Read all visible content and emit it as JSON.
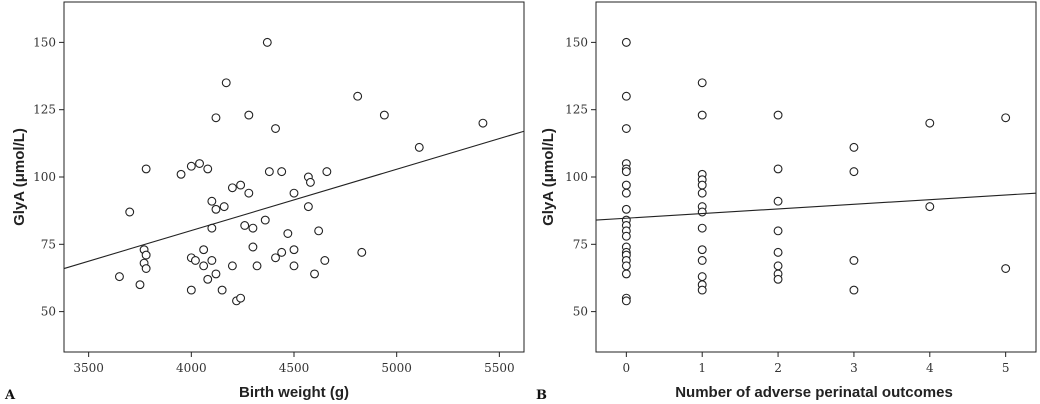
{
  "chart_data": [
    {
      "type": "scatter",
      "panel_label": "A",
      "xlabel": "Birth weight (g)",
      "ylabel": "GlyA  (μmol/L)",
      "xlim": [
        3380,
        5620
      ],
      "ylim": [
        35,
        165
      ],
      "xticks": [
        3500,
        4000,
        4500,
        5000,
        5500
      ],
      "yticks": [
        50,
        75,
        100,
        125,
        150
      ],
      "grid": false,
      "marker": "open-circle",
      "fit_line": {
        "x": [
          3380,
          5620
        ],
        "y": [
          66,
          117
        ]
      },
      "points": [
        {
          "x": 3650,
          "y": 63
        },
        {
          "x": 3700,
          "y": 87
        },
        {
          "x": 3750,
          "y": 60
        },
        {
          "x": 3770,
          "y": 73
        },
        {
          "x": 3780,
          "y": 71
        },
        {
          "x": 3770,
          "y": 68
        },
        {
          "x": 3780,
          "y": 66
        },
        {
          "x": 3780,
          "y": 103
        },
        {
          "x": 3950,
          "y": 101
        },
        {
          "x": 4000,
          "y": 104
        },
        {
          "x": 4040,
          "y": 105
        },
        {
          "x": 4000,
          "y": 70
        },
        {
          "x": 4020,
          "y": 69
        },
        {
          "x": 4000,
          "y": 58
        },
        {
          "x": 4060,
          "y": 73
        },
        {
          "x": 4060,
          "y": 67
        },
        {
          "x": 4080,
          "y": 103
        },
        {
          "x": 4100,
          "y": 91
        },
        {
          "x": 4100,
          "y": 81
        },
        {
          "x": 4100,
          "y": 69
        },
        {
          "x": 4080,
          "y": 62
        },
        {
          "x": 4120,
          "y": 122
        },
        {
          "x": 4120,
          "y": 88
        },
        {
          "x": 4120,
          "y": 64
        },
        {
          "x": 4150,
          "y": 58
        },
        {
          "x": 4160,
          "y": 89
        },
        {
          "x": 4170,
          "y": 135
        },
        {
          "x": 4200,
          "y": 96
        },
        {
          "x": 4200,
          "y": 67
        },
        {
          "x": 4220,
          "y": 54
        },
        {
          "x": 4240,
          "y": 55
        },
        {
          "x": 4240,
          "y": 97
        },
        {
          "x": 4260,
          "y": 82
        },
        {
          "x": 4280,
          "y": 94
        },
        {
          "x": 4280,
          "y": 123
        },
        {
          "x": 4300,
          "y": 81
        },
        {
          "x": 4300,
          "y": 74
        },
        {
          "x": 4320,
          "y": 67
        },
        {
          "x": 4360,
          "y": 84
        },
        {
          "x": 4370,
          "y": 150
        },
        {
          "x": 4380,
          "y": 102
        },
        {
          "x": 4410,
          "y": 118
        },
        {
          "x": 4410,
          "y": 70
        },
        {
          "x": 4440,
          "y": 102
        },
        {
          "x": 4440,
          "y": 72
        },
        {
          "x": 4470,
          "y": 79
        },
        {
          "x": 4500,
          "y": 94
        },
        {
          "x": 4500,
          "y": 73
        },
        {
          "x": 4500,
          "y": 67
        },
        {
          "x": 4570,
          "y": 100
        },
        {
          "x": 4580,
          "y": 98
        },
        {
          "x": 4570,
          "y": 89
        },
        {
          "x": 4600,
          "y": 64
        },
        {
          "x": 4620,
          "y": 80
        },
        {
          "x": 4650,
          "y": 69
        },
        {
          "x": 4660,
          "y": 102
        },
        {
          "x": 4810,
          "y": 130
        },
        {
          "x": 4830,
          "y": 72
        },
        {
          "x": 4940,
          "y": 123
        },
        {
          "x": 5110,
          "y": 111
        },
        {
          "x": 5420,
          "y": 120
        }
      ]
    },
    {
      "type": "scatter",
      "panel_label": "B",
      "xlabel": "Number of adverse perinatal outcomes",
      "ylabel": "GlyA  (μmol/L)",
      "xlim": [
        -0.4,
        5.4
      ],
      "ylim": [
        35,
        165
      ],
      "xticks": [
        0,
        1,
        2,
        3,
        4,
        5
      ],
      "yticks": [
        50,
        75,
        100,
        125,
        150
      ],
      "grid": false,
      "marker": "open-circle",
      "fit_line": {
        "x": [
          -0.4,
          5.4
        ],
        "y": [
          84,
          94
        ]
      },
      "points": [
        {
          "x": 0,
          "y": 150
        },
        {
          "x": 0,
          "y": 130
        },
        {
          "x": 0,
          "y": 118
        },
        {
          "x": 0,
          "y": 105
        },
        {
          "x": 0,
          "y": 103
        },
        {
          "x": 0,
          "y": 102
        },
        {
          "x": 0,
          "y": 97
        },
        {
          "x": 0,
          "y": 94
        },
        {
          "x": 0,
          "y": 88
        },
        {
          "x": 0,
          "y": 84
        },
        {
          "x": 0,
          "y": 82
        },
        {
          "x": 0,
          "y": 80
        },
        {
          "x": 0,
          "y": 78
        },
        {
          "x": 0,
          "y": 74
        },
        {
          "x": 0,
          "y": 72
        },
        {
          "x": 0,
          "y": 71
        },
        {
          "x": 0,
          "y": 69
        },
        {
          "x": 0,
          "y": 67
        },
        {
          "x": 0,
          "y": 64
        },
        {
          "x": 0,
          "y": 55
        },
        {
          "x": 0,
          "y": 54
        },
        {
          "x": 1,
          "y": 135
        },
        {
          "x": 1,
          "y": 123
        },
        {
          "x": 1,
          "y": 101
        },
        {
          "x": 1,
          "y": 99
        },
        {
          "x": 1,
          "y": 97
        },
        {
          "x": 1,
          "y": 94
        },
        {
          "x": 1,
          "y": 89
        },
        {
          "x": 1,
          "y": 87
        },
        {
          "x": 1,
          "y": 81
        },
        {
          "x": 1,
          "y": 73
        },
        {
          "x": 1,
          "y": 69
        },
        {
          "x": 1,
          "y": 63
        },
        {
          "x": 1,
          "y": 60
        },
        {
          "x": 1,
          "y": 58
        },
        {
          "x": 2,
          "y": 123
        },
        {
          "x": 2,
          "y": 103
        },
        {
          "x": 2,
          "y": 91
        },
        {
          "x": 2,
          "y": 80
        },
        {
          "x": 2,
          "y": 72
        },
        {
          "x": 2,
          "y": 67
        },
        {
          "x": 2,
          "y": 64
        },
        {
          "x": 2,
          "y": 62
        },
        {
          "x": 3,
          "y": 111
        },
        {
          "x": 3,
          "y": 102
        },
        {
          "x": 3,
          "y": 69
        },
        {
          "x": 3,
          "y": 58
        },
        {
          "x": 4,
          "y": 120
        },
        {
          "x": 4,
          "y": 89
        },
        {
          "x": 5,
          "y": 122
        },
        {
          "x": 5,
          "y": 66
        }
      ]
    }
  ]
}
